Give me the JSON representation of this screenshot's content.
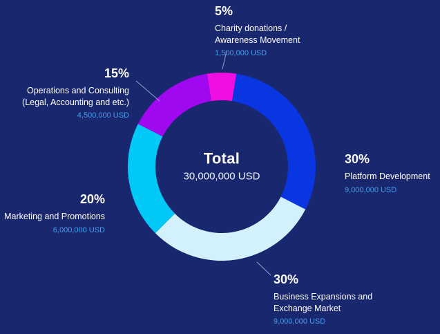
{
  "chart_data": {
    "type": "pie",
    "donut": true,
    "title": "Total",
    "center": {
      "label": "Total",
      "value": "30,000,000 USD"
    },
    "total_usd": 30000000,
    "start_angle_deg": -9,
    "legend_position": "around",
    "segments": [
      {
        "name": "charity",
        "label": "Charity donations / Awareness Movement",
        "percent": 5,
        "value_usd": 1500000,
        "value_text": "1,500,000 USD",
        "color": "#ee0fe0"
      },
      {
        "name": "platform",
        "label": "Platform Development",
        "percent": 30,
        "value_usd": 9000000,
        "value_text": "9,000,000 USD",
        "color": "#0936e0"
      },
      {
        "name": "business",
        "label": "Business Expansions and Exchange Market",
        "percent": 30,
        "value_usd": 9000000,
        "value_text": "9,000,000 USD",
        "color": "#d2f1fd"
      },
      {
        "name": "marketing",
        "label": "Marketing and Promotions",
        "percent": 20,
        "value_usd": 6000000,
        "value_text": "6,000,000 USD",
        "color": "#00c9f7"
      },
      {
        "name": "operations",
        "label": "Operations and Consulting (Legal, Accounting and etc.)",
        "percent": 15,
        "value_usd": 4500000,
        "value_text": "4,500,000 USD",
        "color": "#a009f0"
      }
    ]
  },
  "labels": {
    "charity": {
      "percent": "5%",
      "line1": "Charity donations /",
      "line2": "Awareness Movement",
      "amount": "1,500,000 USD"
    },
    "operations": {
      "percent": "15%",
      "line1": "Operations and Consulting",
      "line2": "(Legal, Accounting and etc.)",
      "amount": "4,500,000 USD"
    },
    "platform": {
      "percent": "30%",
      "line1": "Platform Development",
      "amount": "9,000,000 USD"
    },
    "marketing": {
      "percent": "20%",
      "line1": "Marketing and Promotions",
      "amount": "6,000,000 USD"
    },
    "business": {
      "percent": "30%",
      "line1": "Business Expansions and",
      "line2": "Exchange Market",
      "amount": "9,000,000 USD"
    }
  },
  "colors": {
    "background": "#19276f",
    "label_text": "#ffffff",
    "amount_text": "#459fed",
    "connector": "#aab6d6"
  }
}
